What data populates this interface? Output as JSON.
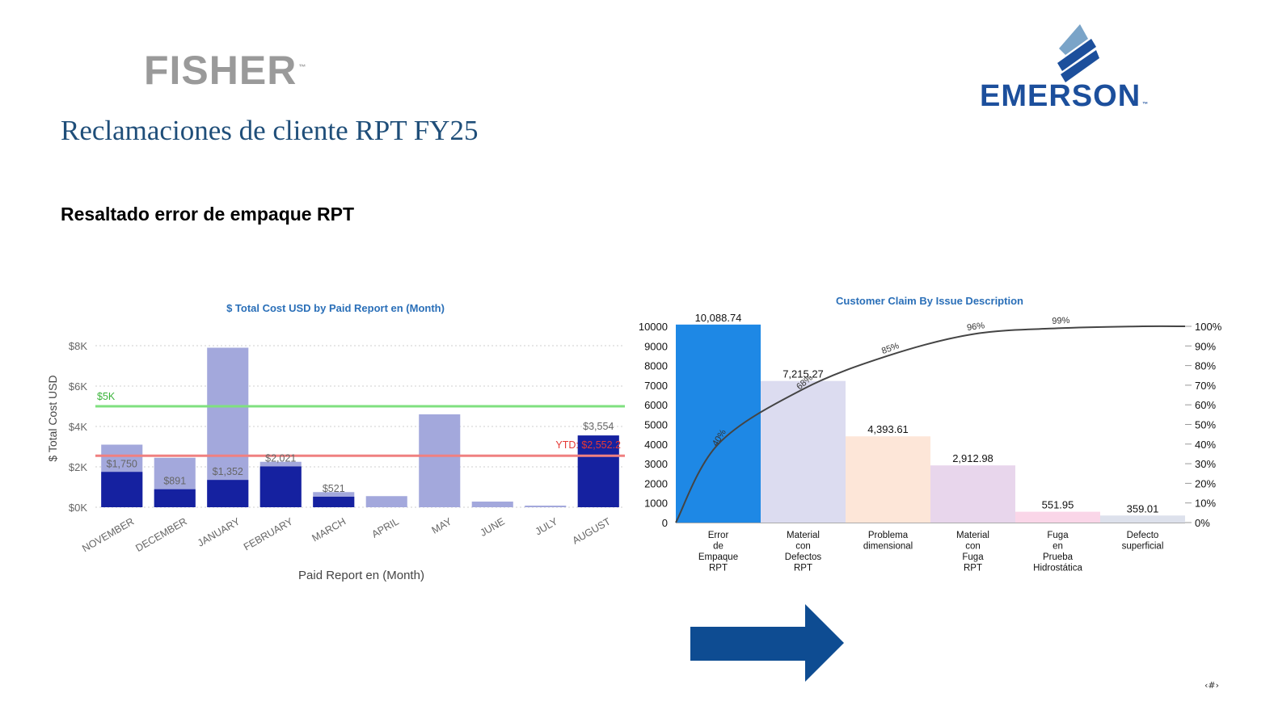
{
  "header": {
    "brand_left": "FISHER",
    "brand_right": "EMERSON",
    "trademark": "™",
    "title": "Reclamaciones de cliente RPT FY25",
    "subtitle": "Resaltado error de empaque RPT"
  },
  "page_number": "‹#›",
  "colors": {
    "title": "#1f4e79",
    "bar_dark": "#1521a0",
    "bar_light": "#a3a8dc",
    "target_line": "#7fe07f",
    "ytd_line": "#f08080",
    "pareto_line": "#444444",
    "arrow": "#0e4c92",
    "emerson_blue": "#1c4f9c"
  },
  "chart_data": [
    {
      "type": "bar",
      "title": "$ Total Cost USD by Paid Report en (Month)",
      "xlabel": "Paid Report en (Month)",
      "ylabel": "$ Total Cost USD",
      "ylim": [
        0,
        8000
      ],
      "y_ticks": [
        "$0K",
        "$2K",
        "$4K",
        "$6K",
        "$8K"
      ],
      "categories": [
        "NOVEMBER",
        "DECEMBER",
        "JANUARY",
        "FEBRUARY",
        "MARCH",
        "APRIL",
        "MAY",
        "JUNE",
        "JULY",
        "AUGUST"
      ],
      "series": [
        {
          "role": "highlight",
          "values": [
            1750,
            891,
            1352,
            2021,
            521,
            0,
            0,
            0,
            0,
            3554
          ]
        },
        {
          "role": "total",
          "values": [
            3100,
            2450,
            7900,
            2250,
            750,
            550,
            4600,
            280,
            80,
            3554
          ]
        }
      ],
      "data_labels": [
        "$1,750",
        "$891",
        "$1,352",
        "$2,021",
        "$521",
        "",
        "",
        "",
        "",
        "$3,554"
      ],
      "reference_lines": [
        {
          "label": "$5K",
          "value": 5000
        },
        {
          "label": "YTD: $2,552.2",
          "value": 2552.2
        }
      ],
      "grid": true,
      "legend": "none"
    },
    {
      "type": "bar",
      "title": "Customer Claim By Issue Description",
      "xlabel": "",
      "ylabel": "",
      "ylim": [
        0,
        10000
      ],
      "y_ticks": [
        "0",
        "1000",
        "2000",
        "3000",
        "4000",
        "5000",
        "6000",
        "7000",
        "8000",
        "9000",
        "10000"
      ],
      "y2_ticks": [
        "0%",
        "10%",
        "20%",
        "30%",
        "40%",
        "50%",
        "60%",
        "70%",
        "80%",
        "90%",
        "100%"
      ],
      "categories": [
        [
          "Error",
          "de",
          "Empaque",
          "RPT"
        ],
        [
          "Material",
          "con",
          "Defectos",
          "RPT"
        ],
        [
          "Problema",
          "dimensional"
        ],
        [
          "Material",
          "con",
          "Fuga",
          "RPT"
        ],
        [
          "Fuga",
          "en",
          "Prueba",
          "Hidrostática"
        ],
        [
          "Defecto",
          "superficial"
        ]
      ],
      "values": [
        10088.74,
        7215.27,
        4393.61,
        2912.98,
        551.95,
        359.01
      ],
      "value_labels": [
        "10,088.74",
        "7,215.27",
        "4,393.61",
        "2,912.98",
        "551.95",
        "359.01"
      ],
      "bar_colors": [
        "#1e88e5",
        "#dcdcf0",
        "#fde6d8",
        "#e8d6ec",
        "#fad6e8",
        "#dde1ec"
      ],
      "cumulative_pct": [
        40,
        68,
        85,
        96,
        99,
        100
      ],
      "cumulative_labels": [
        "40%",
        "68%",
        "85%",
        "96%",
        "99%"
      ],
      "legend": "none"
    }
  ]
}
